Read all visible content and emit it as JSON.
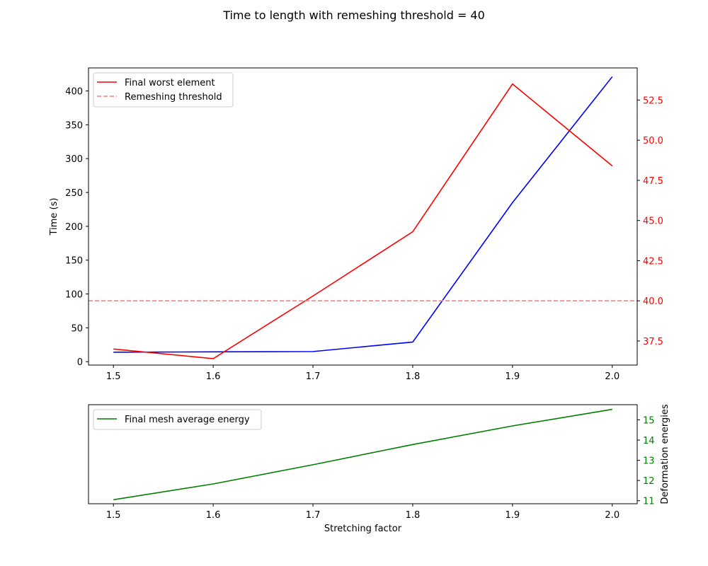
{
  "chart_data": [
    {
      "type": "line",
      "title": "Time to length with remeshing threshold = 40",
      "xlabel": "",
      "ylabel": "Time (s)",
      "y2label": "",
      "x": [
        1.5,
        1.6,
        1.7,
        1.8,
        1.9,
        2.0
      ],
      "x_ticks": [
        "1.5",
        "1.6",
        "1.7",
        "1.8",
        "1.9",
        "2.0"
      ],
      "ylim": [
        -5,
        434
      ],
      "y_ticks": [
        0,
        50,
        100,
        150,
        200,
        250,
        300,
        350,
        400
      ],
      "y2lim": [
        36.0,
        54.5
      ],
      "y2_ticks": [
        "37.5",
        "40.0",
        "42.5",
        "45.0",
        "47.5",
        "50.0",
        "52.5"
      ],
      "y2_color": "#ff0000",
      "legend_position": "upper-left",
      "series": [
        {
          "name": "",
          "axis": "left",
          "color": "#0000ff",
          "style": "solid",
          "values": [
            14,
            14.5,
            15,
            29,
            235,
            421
          ]
        },
        {
          "name": "Final worst element",
          "axis": "right",
          "color": "#ff0000",
          "style": "solid",
          "values": [
            37.0,
            36.4,
            40.3,
            44.3,
            53.5,
            48.4
          ]
        },
        {
          "name": "Remeshing threshold",
          "axis": "right",
          "color": "#ff7f7f",
          "style": "dashed",
          "values": [
            40,
            40,
            40,
            40,
            40,
            40
          ]
        }
      ]
    },
    {
      "type": "line",
      "xlabel": "Stretching factor",
      "ylabel": "",
      "y2label": "Deformation energies",
      "x": [
        1.5,
        1.6,
        1.7,
        1.8,
        1.9,
        2.0
      ],
      "x_ticks": [
        "1.5",
        "1.6",
        "1.7",
        "1.8",
        "1.9",
        "2.0"
      ],
      "y2lim": [
        10.85,
        15.75
      ],
      "y2_ticks": [
        "11",
        "12",
        "13",
        "14",
        "15"
      ],
      "y2_color": "#008000",
      "legend_position": "upper-left",
      "series": [
        {
          "name": "Final mesh average energy",
          "axis": "right",
          "color": "#008000",
          "style": "solid",
          "values": [
            11.05,
            11.83,
            12.78,
            13.78,
            14.7,
            15.52
          ]
        }
      ]
    }
  ]
}
